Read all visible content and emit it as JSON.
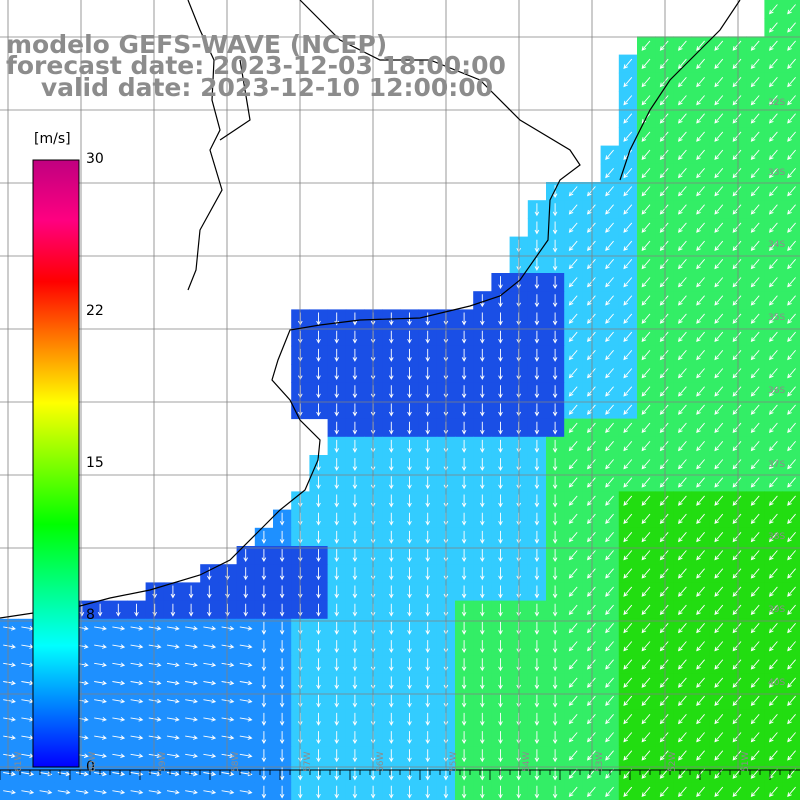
{
  "title": {
    "line1": "modelo GEFS-WAVE (NCEP)",
    "line2": "forecast date: 2023-12-03 18:00:00",
    "line3": "    valid date: 2023-12-10 12:00:00"
  },
  "colorbar": {
    "unit": "[m/s]",
    "ticks": [
      "30",
      "22",
      "15",
      "8",
      "0"
    ],
    "colors": [
      "#0000ff",
      "#0080ff",
      "#00ffff",
      "#00ff80",
      "#00ff00",
      "#80ff00",
      "#ffff00",
      "#ff8000",
      "#ff0000",
      "#ff0080",
      "#c00080"
    ]
  },
  "lat_labels": [
    "32S",
    "33S",
    "34S",
    "35S",
    "36S",
    "37S",
    "38S",
    "39S",
    "40S"
  ],
  "lon_labels": [
    "61W",
    "60W",
    "59W",
    "58W",
    "57W",
    "56W",
    "55W",
    "54W",
    "53W",
    "52W",
    "51W"
  ],
  "map": {
    "variable": "wind speed and direction",
    "ocean_colors": {
      "calm": "#1a4fe6",
      "low": "#1e90ff",
      "mid": "#33ccff",
      "high": "#33ee66",
      "strong": "#22dd11"
    },
    "land_color": "#ffffff",
    "coast_color": "#000000",
    "grid_color": "#808080",
    "arrow_color": "#ffffff"
  }
}
